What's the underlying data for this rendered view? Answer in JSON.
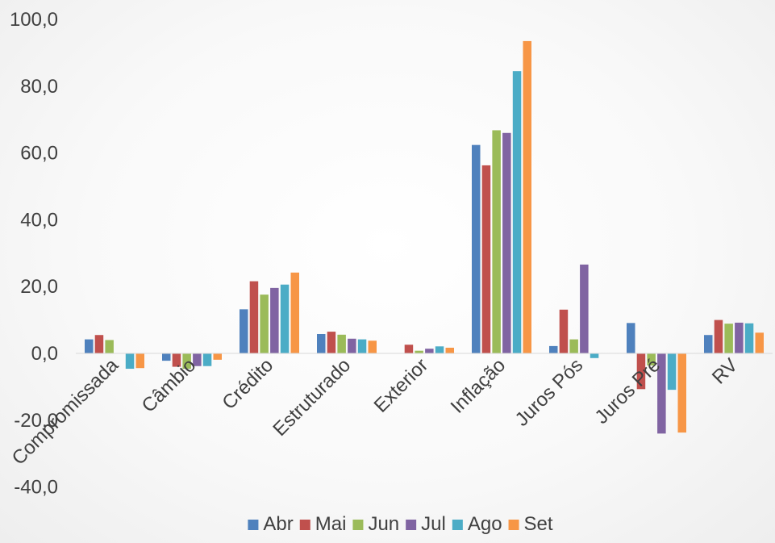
{
  "chart_data": {
    "type": "bar",
    "title": "",
    "xlabel": "",
    "ylabel": "",
    "ylim": [
      -40,
      100
    ],
    "y_ticks": [
      "100,0",
      "80,0",
      "60,0",
      "40,0",
      "20,0",
      "0,0",
      "-20,0",
      "-40,0"
    ],
    "y_tick_values": [
      100,
      80,
      60,
      40,
      20,
      0,
      -20,
      -40
    ],
    "categories": [
      "Compromissada",
      "Câmbio",
      "Crédito",
      "Estruturado",
      "Exterior",
      "Inflação",
      "Juros Pós",
      "Juros Pré",
      "RV"
    ],
    "series": [
      {
        "name": "Abr",
        "color": "#4f81bd",
        "values": [
          4.2,
          -2.2,
          13.2,
          5.8,
          0.0,
          62.4,
          2.2,
          9.1,
          5.5
        ]
      },
      {
        "name": "Mai",
        "color": "#c0504d",
        "values": [
          5.5,
          -4.0,
          21.6,
          6.5,
          2.6,
          56.3,
          13.1,
          -10.7,
          10.0
        ]
      },
      {
        "name": "Jun",
        "color": "#9bbb59",
        "values": [
          4.0,
          -4.6,
          17.6,
          5.6,
          0.8,
          66.8,
          4.2,
          -3.6,
          8.9
        ]
      },
      {
        "name": "Jul",
        "color": "#8064a2",
        "values": [
          0.0,
          -3.8,
          19.6,
          4.4,
          1.4,
          66.0,
          26.6,
          -24.0,
          9.2
        ]
      },
      {
        "name": "Ago",
        "color": "#4bacc6",
        "values": [
          -4.6,
          -3.8,
          20.6,
          4.2,
          2.1,
          84.5,
          -1.4,
          -10.9,
          9.0
        ]
      },
      {
        "name": "Set",
        "color": "#f79646",
        "values": [
          -4.4,
          -1.9,
          24.2,
          3.8,
          1.7,
          93.5,
          0.0,
          -23.7,
          6.2
        ]
      }
    ],
    "legend_position": "bottom",
    "grid": false
  }
}
